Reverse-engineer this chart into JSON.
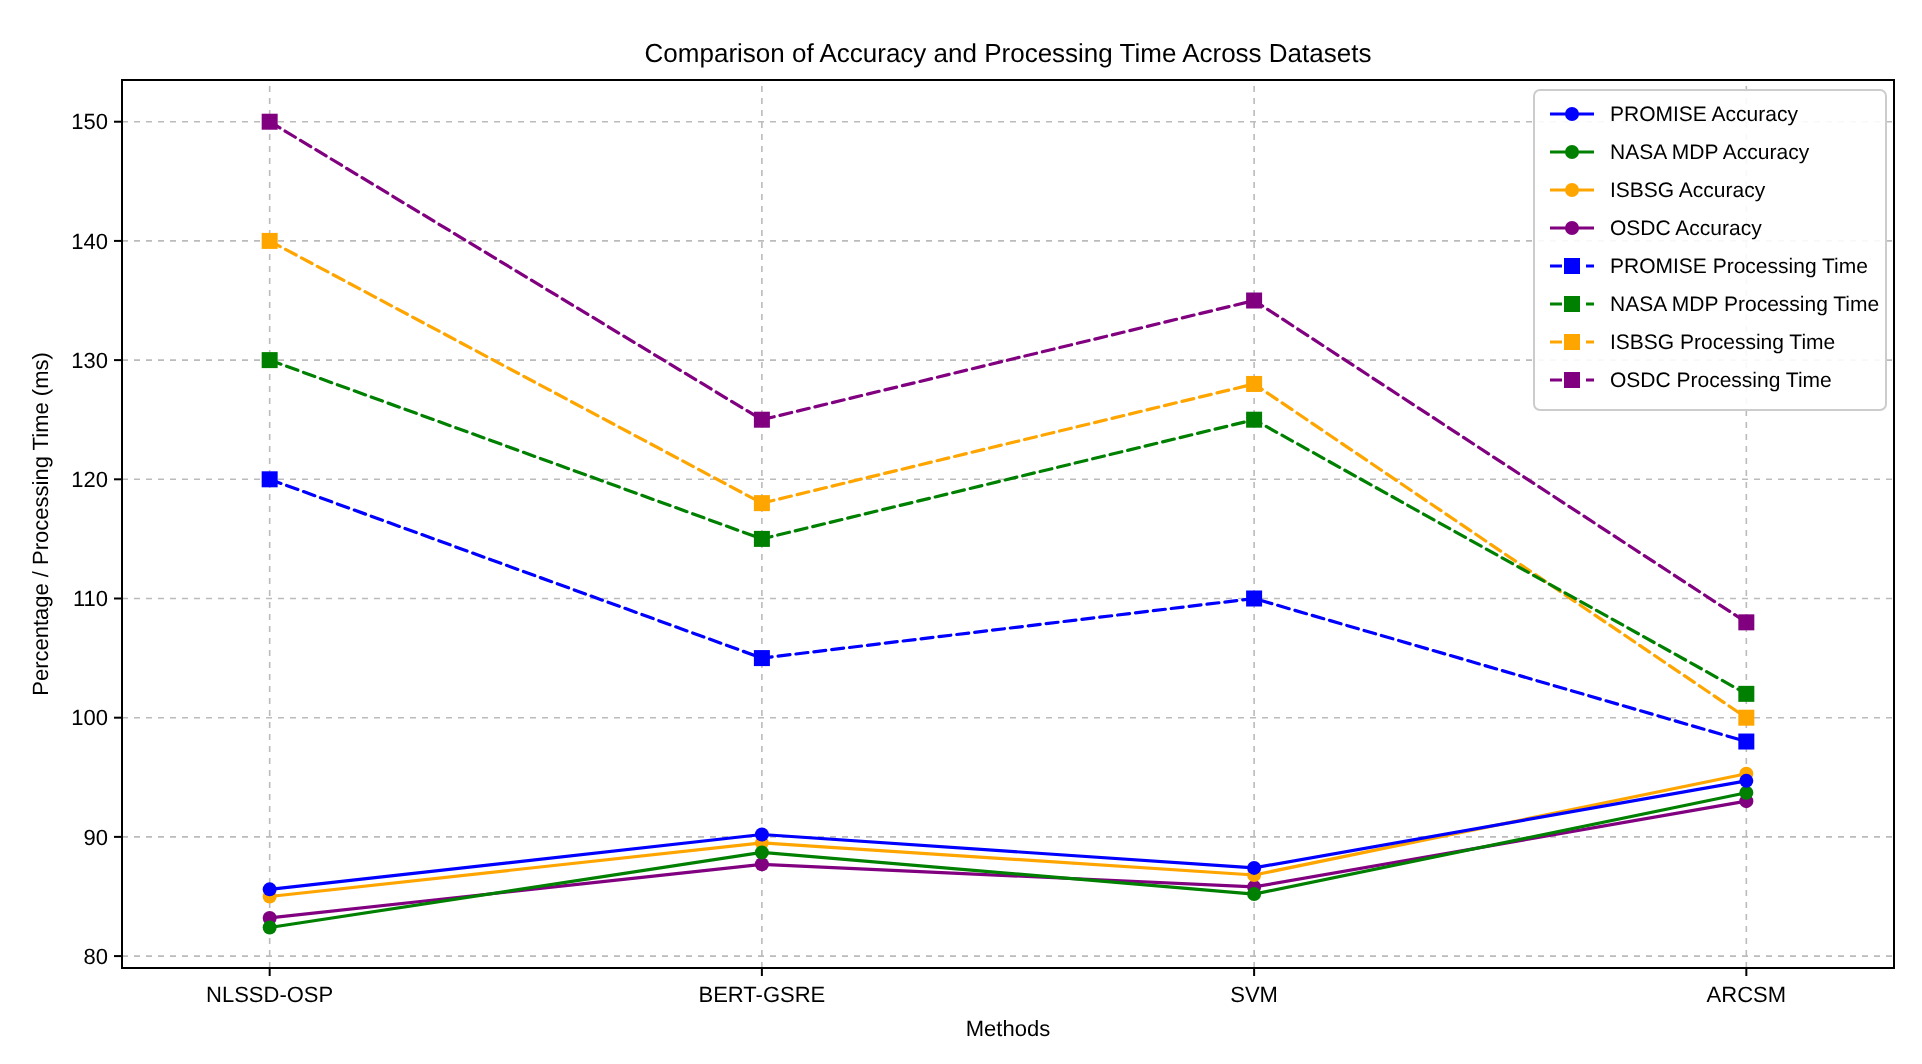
{
  "chart_data": {
    "type": "line",
    "title": "Comparison of Accuracy and Processing Time Across Datasets",
    "xlabel": "Methods",
    "ylabel": "Percentage / Processing Time (ms)",
    "categories": [
      "NLSSD-OSP",
      "BERT-GSRE",
      "SVM",
      "ARCSM"
    ],
    "ylim": [
      79,
      153.5
    ],
    "yticks": [
      80,
      90,
      100,
      110,
      120,
      130,
      140,
      150
    ],
    "grid": true,
    "legend": "top right",
    "series": [
      {
        "name": "PROMISE Accuracy",
        "color": "#0000ff",
        "values": [
          85.6,
          90.2,
          87.4,
          94.7
        ],
        "marker": "circle",
        "line_style": "solid"
      },
      {
        "name": "NASA MDP Accuracy",
        "color": "#008000",
        "values": [
          82.4,
          88.7,
          85.2,
          93.7
        ],
        "marker": "circle",
        "line_style": "solid"
      },
      {
        "name": "ISBSG Accuracy",
        "color": "#ffa500",
        "values": [
          85.0,
          89.5,
          86.8,
          95.3
        ],
        "marker": "circle",
        "line_style": "solid"
      },
      {
        "name": "OSDC Accuracy",
        "color": "#800080",
        "values": [
          83.2,
          87.7,
          85.8,
          93.0
        ],
        "marker": "circle",
        "line_style": "solid"
      },
      {
        "name": "PROMISE Processing Time",
        "color": "#0000ff",
        "values": [
          120,
          105,
          110,
          98
        ],
        "marker": "square",
        "line_style": "dashed"
      },
      {
        "name": "NASA MDP Processing Time",
        "color": "#008000",
        "values": [
          130,
          115,
          125,
          102
        ],
        "marker": "square",
        "line_style": "dashed"
      },
      {
        "name": "ISBSG Processing Time",
        "color": "#ffa500",
        "values": [
          140,
          118,
          128,
          100
        ],
        "marker": "square",
        "line_style": "dashed"
      },
      {
        "name": "OSDC Processing Time",
        "color": "#800080",
        "values": [
          150,
          125,
          135,
          108
        ],
        "marker": "square",
        "line_style": "dashed"
      }
    ]
  }
}
